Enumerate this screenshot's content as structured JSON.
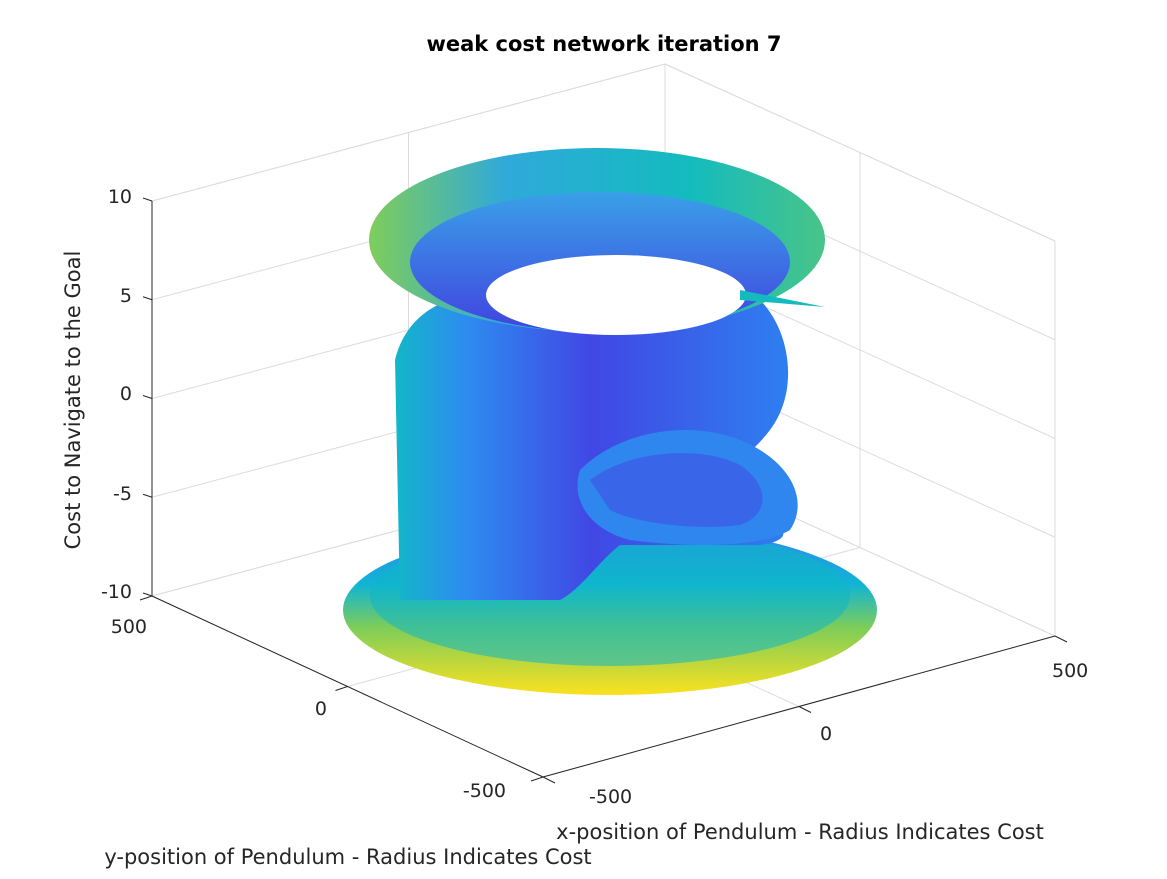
{
  "chart_data": {
    "type": "surface3d",
    "title": "weak cost network iteration 7",
    "xlabel": "x-position of Pendulum - Radius Indicates Cost",
    "ylabel": "y-position of Pendulum - Radius Indicates Cost",
    "zlabel": "Cost to Navigate to the Goal",
    "xlim": [
      -500,
      500
    ],
    "ylim": [
      -500,
      500
    ],
    "zlim": [
      -10,
      10
    ],
    "x_ticks": [
      -500,
      0,
      500
    ],
    "y_ticks": [
      -500,
      0,
      500
    ],
    "z_ticks": [
      -10,
      -5,
      0,
      5,
      10
    ],
    "colormap": "parula",
    "grid": true,
    "colors": {
      "low": "#3e46e6",
      "mid": "#0eb8c2",
      "high": "#fbe11f"
    }
  }
}
